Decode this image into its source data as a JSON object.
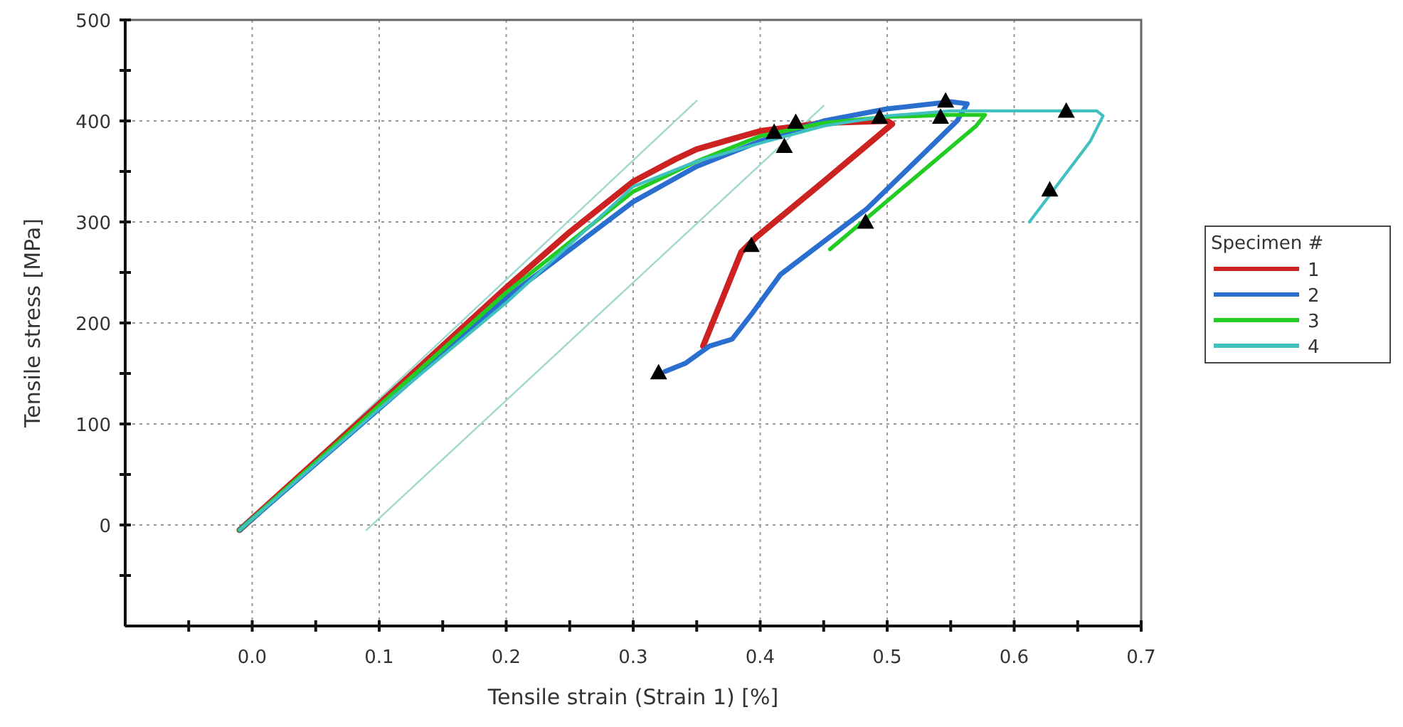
{
  "chart_data": {
    "type": "line",
    "xlabel": "Tensile strain (Strain 1) [%]",
    "ylabel": "Tensile stress [MPa]",
    "legend_title": "Specimen #",
    "legend": "right",
    "grid": true,
    "xlim": [
      -0.1,
      0.7
    ],
    "ylim": [
      -100,
      500
    ],
    "xticks": [
      {
        "value": -0.05,
        "label": null
      },
      {
        "value": 0,
        "label": "0.0"
      },
      {
        "value": 0.05,
        "label": null
      },
      {
        "value": 0.1,
        "label": "0.1"
      },
      {
        "value": 0.15,
        "label": null
      },
      {
        "value": 0.2,
        "label": "0.2"
      },
      {
        "value": 0.25,
        "label": null
      },
      {
        "value": 0.3,
        "label": "0.3"
      },
      {
        "value": 0.35,
        "label": null
      },
      {
        "value": 0.4,
        "label": "0.4"
      },
      {
        "value": 0.45,
        "label": null
      },
      {
        "value": 0.5,
        "label": "0.5"
      },
      {
        "value": 0.55,
        "label": null
      },
      {
        "value": 0.6,
        "label": "0.6"
      },
      {
        "value": 0.65,
        "label": null
      },
      {
        "value": 0.7,
        "label": "0.7"
      }
    ],
    "yticks": [
      {
        "value": -50,
        "label": null
      },
      0,
      {
        "value": 50,
        "label": null
      },
      100,
      {
        "value": 150,
        "label": null
      },
      200,
      {
        "value": 250,
        "label": null
      },
      300,
      {
        "value": 350,
        "label": null
      },
      400,
      {
        "value": 450,
        "label": null
      },
      500
    ],
    "series": [
      {
        "type": "line",
        "color": "#9fd8d0",
        "x": [
          -0.01,
          0.35
        ],
        "values": [
          -5,
          420
        ]
      },
      {
        "type": "line",
        "color": "#9fd8d0",
        "x": [
          0.09,
          0.45
        ],
        "values": [
          -5,
          415
        ]
      },
      {
        "name": "1",
        "color": "#cc2222",
        "x": [
          -0.01,
          0.1,
          0.2,
          0.25,
          0.3,
          0.333,
          0.35,
          0.4,
          0.45,
          0.5,
          0.504,
          0.45,
          0.397,
          0.385,
          0.355
        ],
        "values": [
          -5,
          120,
          235,
          290,
          340,
          362,
          372,
          390,
          398,
          400,
          397,
          340,
          285,
          270,
          177
        ]
      },
      {
        "name": "2",
        "color": "#2a6fd0",
        "x": [
          -0.01,
          0.1,
          0.2,
          0.3,
          0.35,
          0.4,
          0.45,
          0.5,
          0.55,
          0.563,
          0.555,
          0.484,
          0.439,
          0.416,
          0.394,
          0.378,
          0.36,
          0.341,
          0.325
        ],
        "values": [
          -5,
          115,
          225,
          320,
          355,
          380,
          400,
          412,
          419,
          417,
          400,
          313,
          270,
          248,
          210,
          184,
          177,
          160,
          152
        ]
      },
      {
        "name": "3",
        "color": "#22cc22",
        "x": [
          -0.01,
          0.1,
          0.2,
          0.3,
          0.35,
          0.4,
          0.45,
          0.5,
          0.55,
          0.577,
          0.57,
          0.455
        ],
        "values": [
          -5,
          118,
          230,
          330,
          360,
          385,
          398,
          404,
          406,
          406,
          395,
          273
        ]
      },
      {
        "name": "4",
        "color": "#40c0c0",
        "x": [
          -0.01,
          0.1,
          0.2,
          0.3,
          0.35,
          0.4,
          0.45,
          0.5,
          0.55,
          0.6,
          0.665,
          0.67,
          0.66,
          0.63,
          0.612
        ],
        "values": [
          -5,
          115,
          220,
          335,
          360,
          378,
          395,
          405,
          410,
          410,
          410,
          405,
          380,
          330,
          300
        ]
      },
      {
        "type": "scatter",
        "marker": "triangle",
        "color": "#000000",
        "x": [
          0.32,
          0.393,
          0.411,
          0.419,
          0.428,
          0.483,
          0.494,
          0.542,
          0.546,
          0.628,
          0.641
        ],
        "values": [
          151,
          277,
          389,
          375,
          399,
          300,
          404,
          404,
          420,
          332,
          410
        ]
      }
    ]
  }
}
